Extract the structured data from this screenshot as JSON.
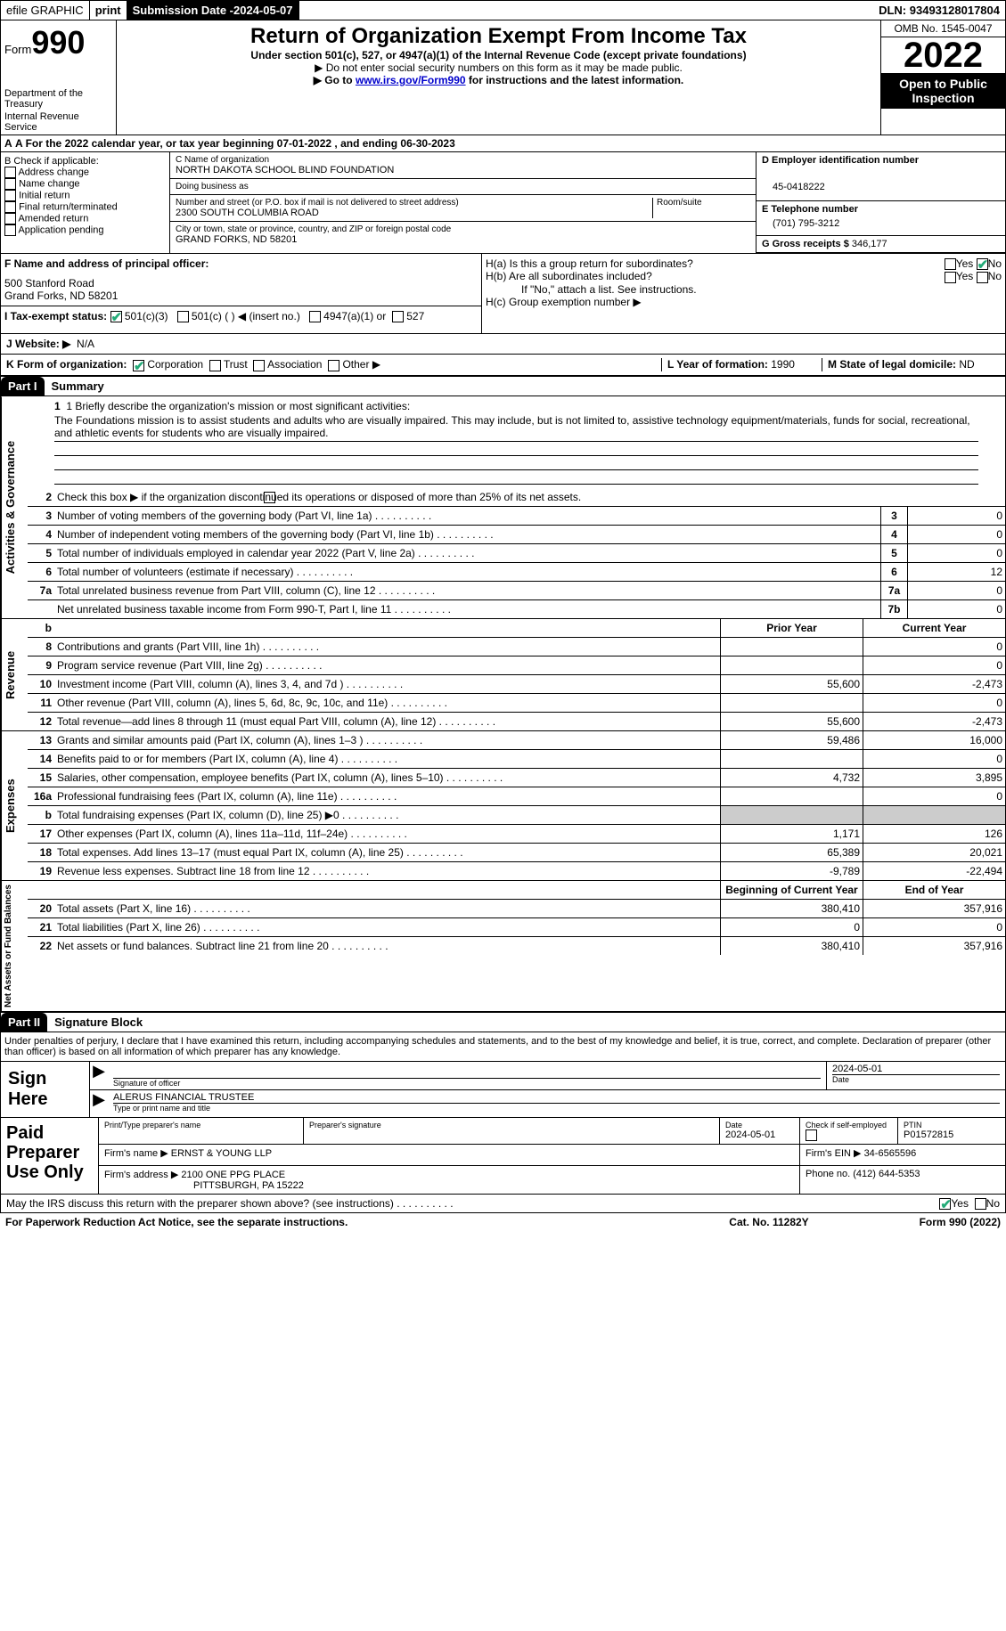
{
  "topbar": {
    "efile": "efile GRAPHIC",
    "print": "print",
    "subdate_label": "Submission Date - ",
    "subdate": "2024-05-07",
    "dln_label": "DLN: ",
    "dln": "93493128017804"
  },
  "header": {
    "form_label": "Form",
    "form_no": "990",
    "dept": "Department of the Treasury",
    "irs": "Internal Revenue Service",
    "title": "Return of Organization Exempt From Income Tax",
    "sub": "Under section 501(c), 527, or 4947(a)(1) of the Internal Revenue Code (except private foundations)",
    "note1": "▶ Do not enter social security numbers on this form as it may be made public.",
    "note2_a": "▶ Go to ",
    "note2_link": "www.irs.gov/Form990",
    "note2_b": " for instructions and the latest information.",
    "omb": "OMB No. 1545-0047",
    "year": "2022",
    "inspect1": "Open to Public",
    "inspect2": "Inspection"
  },
  "lineA": "A For the 2022 calendar year, or tax year beginning 07-01-2022   , and ending 06-30-2023",
  "B": {
    "label": "B Check if applicable:",
    "opts": [
      "Address change",
      "Name change",
      "Initial return",
      "Final return/terminated",
      "Amended return",
      "Application pending"
    ]
  },
  "C": {
    "name_lbl": "C Name of organization",
    "name": "NORTH DAKOTA SCHOOL BLIND FOUNDATION",
    "dba_lbl": "Doing business as",
    "dba": "",
    "addr_lbl": "Number and street (or P.O. box if mail is not delivered to street address)",
    "room_lbl": "Room/suite",
    "addr": "2300 SOUTH COLUMBIA ROAD",
    "city_lbl": "City or town, state or province, country, and ZIP or foreign postal code",
    "city": "GRAND FORKS, ND  58201"
  },
  "D": {
    "ein_lbl": "D Employer identification number",
    "ein": "45-0418222",
    "tel_lbl": "E Telephone number",
    "tel": "(701) 795-3212",
    "gross_lbl": "G Gross receipts $ ",
    "gross": "346,177"
  },
  "F": {
    "lbl": "F Name and address of principal officer:",
    "name": "",
    "addr1": "500 Stanford Road",
    "addr2": "Grand Forks, ND  58201"
  },
  "H": {
    "a": "H(a)  Is this a group return for subordinates?",
    "b": "H(b)  Are all subordinates included?",
    "note": "If \"No,\" attach a list. See instructions.",
    "c": "H(c)  Group exemption number ▶"
  },
  "I": {
    "lbl": "I  Tax-exempt status:",
    "o1": "501(c)(3)",
    "o2": "501(c) (  ) ◀ (insert no.)",
    "o3": "4947(a)(1) or",
    "o4": "527"
  },
  "J": {
    "lbl": "J  Website: ▶",
    "val": "N/A"
  },
  "K": {
    "lbl": "K Form of organization:",
    "o1": "Corporation",
    "o2": "Trust",
    "o3": "Association",
    "o4": "Other ▶"
  },
  "L": {
    "lbl": "L Year of formation: ",
    "val": "1990"
  },
  "M": {
    "lbl": "M State of legal domicile: ",
    "val": "ND"
  },
  "parts": {
    "p1": "Part I",
    "p1t": "Summary",
    "p2": "Part II",
    "p2t": "Signature Block"
  },
  "tabs": {
    "ag": "Activities & Governance",
    "rev": "Revenue",
    "exp": "Expenses",
    "nab": "Net Assets or Fund Balances"
  },
  "mission": {
    "lbl": "1   Briefly describe the organization's mission or most significant activities:",
    "text": "The Foundations mission is to assist students and adults who are visually impaired. This may include, but is not limited to, assistive technology equipment/materials, funds for social, recreational, and athletic events for students who are visually impaired."
  },
  "line2": "Check this box ▶       if the organization discontinued its operations or disposed of more than 25% of its net assets.",
  "rows_ag": [
    {
      "n": "3",
      "d": "Number of voting members of the governing body (Part VI, line 1a)",
      "b": "3",
      "v": "0"
    },
    {
      "n": "4",
      "d": "Number of independent voting members of the governing body (Part VI, line 1b)",
      "b": "4",
      "v": "0"
    },
    {
      "n": "5",
      "d": "Total number of individuals employed in calendar year 2022 (Part V, line 2a)",
      "b": "5",
      "v": "0"
    },
    {
      "n": "6",
      "d": "Total number of volunteers (estimate if necessary)",
      "b": "6",
      "v": "12"
    },
    {
      "n": "7a",
      "d": "Total unrelated business revenue from Part VIII, column (C), line 12",
      "b": "7a",
      "v": "0"
    },
    {
      "n": "",
      "d": "Net unrelated business taxable income from Form 990-T, Part I, line 11",
      "b": "7b",
      "v": "0"
    }
  ],
  "col_hdr": {
    "py": "Prior Year",
    "cy": "Current Year",
    "boy": "Beginning of Current Year",
    "eoy": "End of Year"
  },
  "rows_rev": [
    {
      "n": "8",
      "d": "Contributions and grants (Part VIII, line 1h)",
      "py": "",
      "cy": "0"
    },
    {
      "n": "9",
      "d": "Program service revenue (Part VIII, line 2g)",
      "py": "",
      "cy": "0"
    },
    {
      "n": "10",
      "d": "Investment income (Part VIII, column (A), lines 3, 4, and 7d )",
      "py": "55,600",
      "cy": "-2,473"
    },
    {
      "n": "11",
      "d": "Other revenue (Part VIII, column (A), lines 5, 6d, 8c, 9c, 10c, and 11e)",
      "py": "",
      "cy": "0"
    },
    {
      "n": "12",
      "d": "Total revenue—add lines 8 through 11 (must equal Part VIII, column (A), line 12)",
      "py": "55,600",
      "cy": "-2,473"
    }
  ],
  "rows_exp": [
    {
      "n": "13",
      "d": "Grants and similar amounts paid (Part IX, column (A), lines 1–3 )",
      "py": "59,486",
      "cy": "16,000"
    },
    {
      "n": "14",
      "d": "Benefits paid to or for members (Part IX, column (A), line 4)",
      "py": "",
      "cy": "0"
    },
    {
      "n": "15",
      "d": "Salaries, other compensation, employee benefits (Part IX, column (A), lines 5–10)",
      "py": "4,732",
      "cy": "3,895"
    },
    {
      "n": "16a",
      "d": "Professional fundraising fees (Part IX, column (A), line 11e)",
      "py": "",
      "cy": "0"
    },
    {
      "n": "b",
      "d": "Total fundraising expenses (Part IX, column (D), line 25) ▶0",
      "py": "SHADE",
      "cy": "SHADE"
    },
    {
      "n": "17",
      "d": "Other expenses (Part IX, column (A), lines 11a–11d, 11f–24e)",
      "py": "1,171",
      "cy": "126"
    },
    {
      "n": "18",
      "d": "Total expenses. Add lines 13–17 (must equal Part IX, column (A), line 25)",
      "py": "65,389",
      "cy": "20,021"
    },
    {
      "n": "19",
      "d": "Revenue less expenses. Subtract line 18 from line 12",
      "py": "-9,789",
      "cy": "-22,494"
    }
  ],
  "rows_nab": [
    {
      "n": "20",
      "d": "Total assets (Part X, line 16)",
      "py": "380,410",
      "cy": "357,916"
    },
    {
      "n": "21",
      "d": "Total liabilities (Part X, line 26)",
      "py": "0",
      "cy": "0"
    },
    {
      "n": "22",
      "d": "Net assets or fund balances. Subtract line 21 from line 20",
      "py": "380,410",
      "cy": "357,916"
    }
  ],
  "sig": {
    "penalty": "Under penalties of perjury, I declare that I have examined this return, including accompanying schedules and statements, and to the best of my knowledge and belief, it is true, correct, and complete. Declaration of preparer (other than officer) is based on all information of which preparer has any knowledge.",
    "sign_here": "Sign Here",
    "sig_lbl": "Signature of officer",
    "date_lbl": "Date",
    "date": "2024-05-01",
    "name": "ALERUS FINANCIAL  TRUSTEE",
    "name_lbl": "Type or print name and title"
  },
  "prep": {
    "title": "Paid Preparer Use Only",
    "pname_lbl": "Print/Type preparer's name",
    "psig_lbl": "Preparer's signature",
    "pdate_lbl": "Date",
    "pdate": "2024-05-01",
    "check_lbl": "Check         if self-employed",
    "ptin_lbl": "PTIN",
    "ptin": "P01572815",
    "firm_lbl": "Firm's name    ▶ ",
    "firm": "ERNST & YOUNG LLP",
    "fein_lbl": "Firm's EIN ▶ ",
    "fein": "34-6565596",
    "faddr_lbl": "Firm's address ▶ ",
    "faddr1": "2100 ONE PPG PLACE",
    "faddr2": "PITTSBURGH, PA  15222",
    "phone_lbl": "Phone no. ",
    "phone": "(412) 644-5353"
  },
  "footer": {
    "discuss": "May the IRS discuss this return with the preparer shown above? (see instructions)",
    "pra": "For Paperwork Reduction Act Notice, see the separate instructions.",
    "cat": "Cat. No. 11282Y",
    "form": "Form 990 (2022)"
  }
}
